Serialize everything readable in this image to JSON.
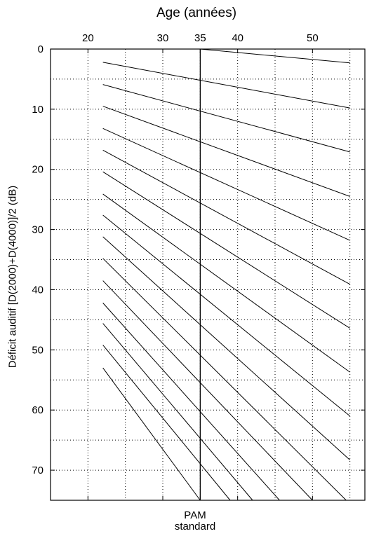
{
  "chart_data": {
    "type": "line",
    "title": "",
    "xlabel": "Age (années)",
    "ylabel": "Déficit auditif [D(2000)+D(4000)]/2  (dB)",
    "x_ticks": [
      20,
      30,
      35,
      40,
      50
    ],
    "y_ticks": [
      0,
      10,
      20,
      30,
      40,
      50,
      60,
      70
    ],
    "xlim": [
      15,
      57
    ],
    "ylim": [
      0,
      75
    ],
    "y_inverted": true,
    "x_axis_position": "top",
    "grid": "dotted",
    "reference_line": {
      "x": 35,
      "label_line1": "PAM",
      "label_line2": "standard"
    },
    "series": [
      {
        "x": [
          35,
          55
        ],
        "y": [
          0,
          2.3
        ]
      },
      {
        "x": [
          22,
          55
        ],
        "y": [
          2.2,
          9.8
        ]
      },
      {
        "x": [
          22,
          55
        ],
        "y": [
          5.9,
          17.1
        ]
      },
      {
        "x": [
          22,
          55
        ],
        "y": [
          9.5,
          24.5
        ]
      },
      {
        "x": [
          22,
          55
        ],
        "y": [
          13.2,
          31.8
        ]
      },
      {
        "x": [
          22,
          55
        ],
        "y": [
          16.8,
          39.1
        ]
      },
      {
        "x": [
          22,
          55
        ],
        "y": [
          20.4,
          46.4
        ]
      },
      {
        "x": [
          22,
          55
        ],
        "y": [
          24.1,
          53.7
        ]
      },
      {
        "x": [
          22,
          55
        ],
        "y": [
          27.6,
          61.0
        ]
      },
      {
        "x": [
          22,
          55
        ],
        "y": [
          31.2,
          68.3
        ]
      },
      {
        "x": [
          22,
          54.5
        ],
        "y": [
          34.8,
          75
        ]
      },
      {
        "x": [
          22,
          50
        ],
        "y": [
          38.5,
          75
        ]
      },
      {
        "x": [
          22,
          45.6
        ],
        "y": [
          42.2,
          75
        ]
      },
      {
        "x": [
          22,
          42
        ],
        "y": [
          45.6,
          75
        ]
      },
      {
        "x": [
          22,
          39
        ],
        "y": [
          49.2,
          75
        ]
      },
      {
        "x": [
          22,
          35
        ],
        "y": [
          53.0,
          75
        ]
      }
    ]
  }
}
